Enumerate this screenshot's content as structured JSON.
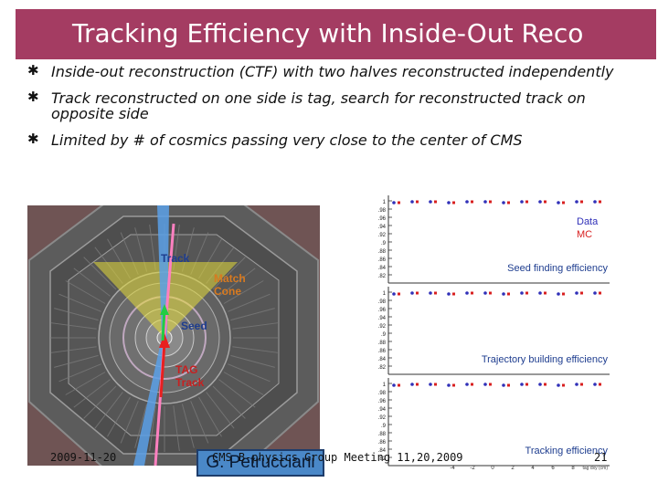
{
  "slide": {
    "title": "Tracking Efficiency with Inside-Out Reco",
    "bullet_marker": "✱",
    "bullets": [
      "Inside-out reconstruction (CTF) with two halves reconstructed independently",
      "Track reconstructed on one side is tag, search for reconstructed track on opposite side",
      "Limited by # of cosmics passing very close to the center of CMS"
    ],
    "colors": {
      "title_bar": "#a43c62",
      "data": "#3030b8",
      "mc": "#d82020",
      "author_box": "#4a88c8"
    }
  },
  "detector": {
    "labels": {
      "track": "Track",
      "match_cone": "Match\nCone",
      "seed": "Seed",
      "tag_track": "TAG\nTrack"
    }
  },
  "plots": {
    "legend": {
      "data": "Data",
      "mc": "MC"
    },
    "titles": [
      "Seed finding efficiency",
      "Trajectory building efficiency",
      "Tracking efficiency"
    ],
    "yticks": [
      "1",
      ".98",
      ".96",
      ".94",
      ".92",
      ".9",
      ".88",
      ".86",
      ".84",
      ".82"
    ],
    "xticks": [
      "-4",
      "-2",
      "0",
      "2",
      "4",
      "6",
      "8"
    ],
    "xunit": "tag dxy (cm)"
  },
  "footer": {
    "date": "2009-11-20",
    "meeting": "CMS B-physics Group Meeting 11,20,2009",
    "page": "21",
    "author": "G. Petrucciani"
  }
}
